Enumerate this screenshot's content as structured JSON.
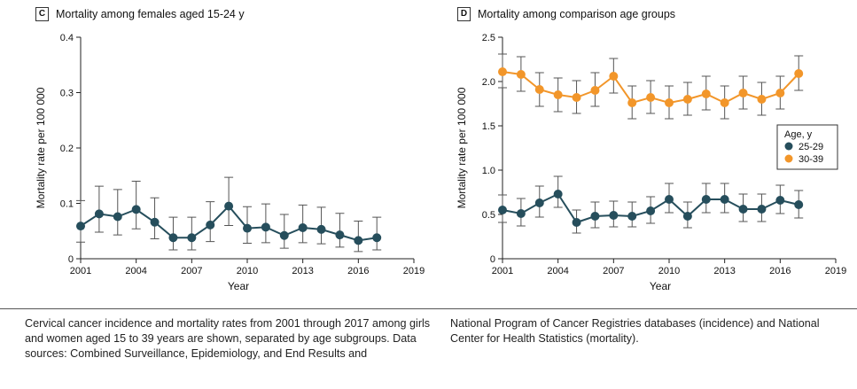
{
  "panels": {
    "c": {
      "letter": "C",
      "title": "Mortality among females aged 15-24 y"
    },
    "d": {
      "letter": "D",
      "title": "Mortality among comparison age groups"
    }
  },
  "caption": {
    "left": "Cervical cancer incidence and mortality rates from 2001 through 2017 among girls and women aged 15 to 39 years are shown, separated by age subgroups. Data sources: Combined Surveillance, Epidemiology, and End Results and",
    "right": "National Program of Cancer Registries databases (incidence) and National Center for Health Statistics (mortality)."
  },
  "colors": {
    "teal": "#264e5c",
    "orange": "#f2962a",
    "axis": "#222222"
  },
  "chart_data": [
    {
      "type": "line",
      "panel": "C",
      "title": "Mortality among females aged 15-24 y",
      "xlabel": "Year",
      "ylabel": "Mortality rate per 100 000",
      "xlim": [
        2001,
        2019
      ],
      "ylim": [
        0,
        0.4
      ],
      "xticks": [
        2001,
        2004,
        2007,
        2010,
        2013,
        2016,
        2019
      ],
      "yticks": [
        0,
        0.1,
        0.2,
        0.3,
        0.4
      ],
      "yticklabels": [
        "0",
        "0.1",
        "0.2",
        "0.3",
        "0.4"
      ],
      "x": [
        2001,
        2002,
        2003,
        2004,
        2005,
        2006,
        2007,
        2008,
        2009,
        2010,
        2011,
        2012,
        2013,
        2014,
        2015,
        2016,
        2017
      ],
      "series": [
        {
          "color": "#264e5c",
          "values": [
            0.059,
            0.081,
            0.076,
            0.089,
            0.066,
            0.038,
            0.038,
            0.061,
            0.095,
            0.055,
            0.057,
            0.042,
            0.056,
            0.053,
            0.043,
            0.033,
            0.038
          ],
          "lower": [
            0.03,
            0.048,
            0.043,
            0.054,
            0.036,
            0.016,
            0.016,
            0.031,
            0.06,
            0.028,
            0.029,
            0.019,
            0.029,
            0.027,
            0.021,
            0.013,
            0.016
          ],
          "upper": [
            0.105,
            0.131,
            0.125,
            0.14,
            0.11,
            0.075,
            0.075,
            0.103,
            0.147,
            0.094,
            0.099,
            0.08,
            0.097,
            0.093,
            0.082,
            0.068,
            0.075
          ]
        }
      ]
    },
    {
      "type": "line",
      "panel": "D",
      "title": "Mortality among comparison age groups",
      "xlabel": "Year",
      "ylabel": "Mortality rate per 100 000",
      "xlim": [
        2001,
        2019
      ],
      "ylim": [
        0,
        2.5
      ],
      "xticks": [
        2001,
        2004,
        2007,
        2010,
        2013,
        2016,
        2019
      ],
      "yticks": [
        0,
        0.5,
        1.0,
        1.5,
        2.0,
        2.5
      ],
      "yticklabels": [
        "0",
        "0.5",
        "1.0",
        "1.5",
        "2.0",
        "2.5"
      ],
      "legend": {
        "title": "Age, y",
        "placement": "right"
      },
      "x": [
        2001,
        2002,
        2003,
        2004,
        2005,
        2006,
        2007,
        2008,
        2009,
        2010,
        2011,
        2012,
        2013,
        2014,
        2015,
        2016,
        2017
      ],
      "series": [
        {
          "name": "25-29",
          "color": "#264e5c",
          "values": [
            0.55,
            0.51,
            0.63,
            0.73,
            0.41,
            0.48,
            0.49,
            0.48,
            0.54,
            0.67,
            0.48,
            0.67,
            0.67,
            0.56,
            0.56,
            0.66,
            0.61
          ],
          "lower": [
            0.41,
            0.37,
            0.47,
            0.58,
            0.29,
            0.35,
            0.36,
            0.36,
            0.4,
            0.52,
            0.35,
            0.52,
            0.52,
            0.42,
            0.42,
            0.51,
            0.46
          ],
          "upper": [
            0.72,
            0.68,
            0.82,
            0.93,
            0.55,
            0.64,
            0.65,
            0.64,
            0.7,
            0.85,
            0.64,
            0.85,
            0.85,
            0.73,
            0.73,
            0.83,
            0.77
          ]
        },
        {
          "name": "30-39",
          "color": "#f2962a",
          "values": [
            2.11,
            2.08,
            1.91,
            1.85,
            1.82,
            1.9,
            2.06,
            1.76,
            1.82,
            1.76,
            1.8,
            1.86,
            1.76,
            1.87,
            1.8,
            1.87,
            2.09
          ],
          "lower": [
            1.93,
            1.89,
            1.72,
            1.66,
            1.64,
            1.72,
            1.87,
            1.58,
            1.64,
            1.58,
            1.62,
            1.68,
            1.58,
            1.69,
            1.62,
            1.69,
            1.9
          ],
          "upper": [
            2.31,
            2.28,
            2.1,
            2.04,
            2.01,
            2.1,
            2.26,
            1.95,
            2.01,
            1.95,
            1.99,
            2.06,
            1.95,
            2.06,
            1.99,
            2.06,
            2.29
          ]
        }
      ]
    }
  ]
}
